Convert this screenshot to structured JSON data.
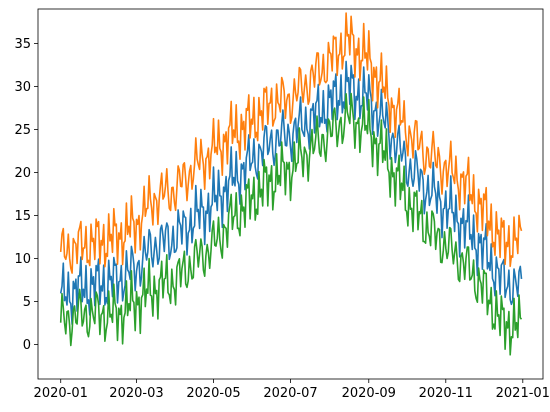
{
  "chart_data": {
    "type": "line",
    "title": "",
    "xlabel": "",
    "ylabel": "",
    "x_start": "2020-01-01",
    "x_end": "2020-12-31",
    "xlim": [
      "2019-12-14",
      "2021-01-17"
    ],
    "ylim": [
      -4,
      39
    ],
    "x_ticks": [
      "2020-01-01",
      "2020-03-01",
      "2020-05-01",
      "2020-07-01",
      "2020-09-01",
      "2020-11-01",
      "2021-01-01"
    ],
    "x_tick_labels": [
      "2020-01",
      "2020-03",
      "2020-05",
      "2020-07",
      "2020-09",
      "2020-11",
      "2021-01"
    ],
    "y_ticks": [
      0,
      5,
      10,
      15,
      20,
      25,
      30,
      35
    ],
    "y_tick_labels": [
      "0",
      "5",
      "10",
      "15",
      "20",
      "25",
      "30",
      "35"
    ],
    "grid": false,
    "legend": "none",
    "series": [
      {
        "color": "#1f77b4",
        "points": [
          [
            "2020-01-01",
            5.5
          ],
          [
            "2020-01-15",
            6.5
          ],
          [
            "2020-02-01",
            7.0
          ],
          [
            "2020-02-15",
            7.5
          ],
          [
            "2020-03-01",
            9.0
          ],
          [
            "2020-03-15",
            11.5
          ],
          [
            "2020-04-01",
            12.5
          ],
          [
            "2020-04-15",
            14.5
          ],
          [
            "2020-05-01",
            16.5
          ],
          [
            "2020-05-15",
            19.0
          ],
          [
            "2020-06-01",
            21.5
          ],
          [
            "2020-06-15",
            23.5
          ],
          [
            "2020-07-01",
            24.5
          ],
          [
            "2020-07-15",
            26.0
          ],
          [
            "2020-08-01",
            28.0
          ],
          [
            "2020-08-15",
            30.0
          ],
          [
            "2020-09-01",
            28.5
          ],
          [
            "2020-09-15",
            25.5
          ],
          [
            "2020-10-01",
            21.0
          ],
          [
            "2020-10-15",
            18.5
          ],
          [
            "2020-11-01",
            16.0
          ],
          [
            "2020-11-15",
            14.0
          ],
          [
            "2020-12-01",
            11.0
          ],
          [
            "2020-12-15",
            7.5
          ],
          [
            "2020-12-31",
            6.5
          ]
        ]
      },
      {
        "color": "#ff7f0e",
        "points": [
          [
            "2020-01-01",
            10.5
          ],
          [
            "2020-01-15",
            11.5
          ],
          [
            "2020-02-01",
            12.0
          ],
          [
            "2020-02-15",
            12.5
          ],
          [
            "2020-03-01",
            14.0
          ],
          [
            "2020-03-15",
            17.0
          ],
          [
            "2020-04-01",
            18.0
          ],
          [
            "2020-04-15",
            20.5
          ],
          [
            "2020-05-01",
            22.5
          ],
          [
            "2020-05-15",
            24.5
          ],
          [
            "2020-06-01",
            26.0
          ],
          [
            "2020-06-15",
            28.0
          ],
          [
            "2020-07-01",
            28.5
          ],
          [
            "2020-07-15",
            30.5
          ],
          [
            "2020-08-01",
            33.0
          ],
          [
            "2020-08-15",
            35.5
          ],
          [
            "2020-09-01",
            33.0
          ],
          [
            "2020-09-15",
            29.0
          ],
          [
            "2020-10-01",
            25.0
          ],
          [
            "2020-10-15",
            22.5
          ],
          [
            "2020-11-01",
            20.5
          ],
          [
            "2020-11-15",
            19.0
          ],
          [
            "2020-12-01",
            15.5
          ],
          [
            "2020-12-15",
            12.0
          ],
          [
            "2020-12-31",
            12.0
          ]
        ]
      },
      {
        "color": "#2ca02c",
        "points": [
          [
            "2020-01-01",
            2.5
          ],
          [
            "2020-01-15",
            3.5
          ],
          [
            "2020-02-01",
            3.5
          ],
          [
            "2020-02-15",
            3.5
          ],
          [
            "2020-03-01",
            5.0
          ],
          [
            "2020-03-15",
            6.5
          ],
          [
            "2020-04-01",
            7.5
          ],
          [
            "2020-04-15",
            9.5
          ],
          [
            "2020-05-01",
            11.5
          ],
          [
            "2020-05-15",
            14.5
          ],
          [
            "2020-06-01",
            17.0
          ],
          [
            "2020-06-15",
            19.0
          ],
          [
            "2020-07-01",
            20.5
          ],
          [
            "2020-07-15",
            22.5
          ],
          [
            "2020-08-01",
            24.5
          ],
          [
            "2020-08-15",
            26.5
          ],
          [
            "2020-09-01",
            25.0
          ],
          [
            "2020-09-15",
            21.5
          ],
          [
            "2020-10-01",
            17.0
          ],
          [
            "2020-10-15",
            14.0
          ],
          [
            "2020-11-01",
            11.5
          ],
          [
            "2020-11-15",
            9.5
          ],
          [
            "2020-12-01",
            6.5
          ],
          [
            "2020-12-15",
            2.5
          ],
          [
            "2020-12-31",
            2.0
          ]
        ]
      }
    ]
  }
}
